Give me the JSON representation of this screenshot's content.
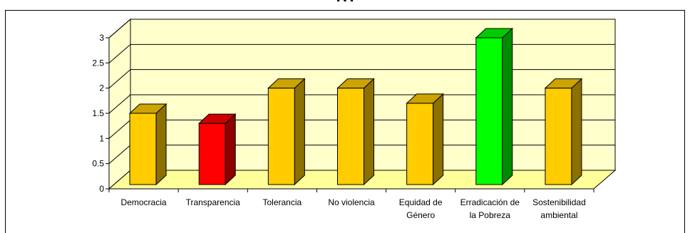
{
  "chart_data": {
    "type": "bar",
    "title": "...",
    "categories": [
      [
        "Democracia"
      ],
      [
        "Transparencia"
      ],
      [
        "Tolerancia"
      ],
      [
        "No violencia"
      ],
      [
        "Equidad de",
        "Género"
      ],
      [
        "Erradicación de",
        "la Pobreza"
      ],
      [
        "Sostenibilidad",
        "ambiental"
      ]
    ],
    "values": [
      1.5,
      1.3,
      2.0,
      2.0,
      1.7,
      3.0,
      2.0
    ],
    "bar_colors": [
      "#FFCC00",
      "#FF0000",
      "#FFCC00",
      "#FFCC00",
      "#FFCC00",
      "#00FF00",
      "#FFCC00"
    ],
    "ylim": [
      0,
      3
    ],
    "yticks": [
      0,
      0.5,
      1,
      1.5,
      2,
      2.5,
      3
    ],
    "ytick_labels": [
      "0",
      "0.5",
      "1",
      "1.5",
      "2",
      "2.5",
      "3"
    ],
    "grid": true,
    "xlabel": "",
    "ylabel": "",
    "colors": {
      "wall": "#FFFFCC",
      "floor": "#FFFF99"
    }
  }
}
